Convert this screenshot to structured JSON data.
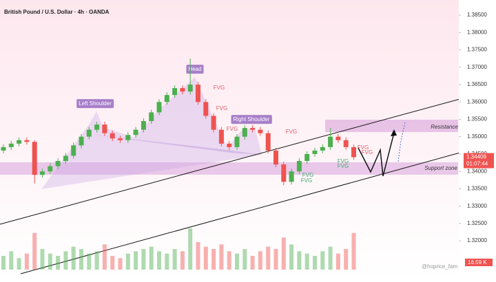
{
  "chart_data": {
    "type": "candlestick",
    "title": "British Pound / U.S. Dollar · 4h · OANDA",
    "ylim": [
      1.3117,
      1.3874
    ],
    "yticks": [
      {
        "value": 1.385,
        "label": "1.38500"
      },
      {
        "value": 1.38,
        "label": "1.38000"
      },
      {
        "value": 1.375,
        "label": "1.37500"
      },
      {
        "value": 1.37,
        "label": "1.37000"
      },
      {
        "value": 1.365,
        "label": "1.36500"
      },
      {
        "value": 1.36,
        "label": "1.36000"
      },
      {
        "value": 1.355,
        "label": "1.35500"
      },
      {
        "value": 1.35,
        "label": "1.35000"
      },
      {
        "value": 1.345,
        "label": "1.34500"
      },
      {
        "value": 1.34,
        "label": "1.34000"
      },
      {
        "value": 1.335,
        "label": "1.33500"
      },
      {
        "value": 1.33,
        "label": "1.33000"
      },
      {
        "value": 1.325,
        "label": "1.32500"
      },
      {
        "value": 1.32,
        "label": "1.32000"
      }
    ],
    "up_color": "#4caf50",
    "down_color": "#ef5350",
    "open": [
      1.346,
      1.347,
      1.348,
      1.349,
      1.3485,
      1.339,
      1.34,
      1.3415,
      1.343,
      1.3445,
      1.3475,
      1.35,
      1.352,
      1.3535,
      1.351,
      1.3495,
      1.349,
      1.3505,
      1.352,
      1.3545,
      1.357,
      1.36,
      1.362,
      1.364,
      1.363,
      1.365,
      1.36,
      1.356,
      1.352,
      1.348,
      1.347,
      1.35,
      1.3525,
      1.352,
      1.351,
      1.346,
      1.342,
      1.337,
      1.34,
      1.343,
      1.345,
      1.346,
      1.347,
      1.35,
      1.349,
      1.347
    ],
    "high": [
      1.3478,
      1.3488,
      1.3498,
      1.3498,
      1.349,
      1.3408,
      1.3423,
      1.3438,
      1.3453,
      1.3483,
      1.3508,
      1.3528,
      1.3543,
      1.3543,
      1.3518,
      1.3503,
      1.3513,
      1.3528,
      1.3553,
      1.3578,
      1.3608,
      1.3628,
      1.3648,
      1.3648,
      1.3725,
      1.3658,
      1.3608,
      1.3568,
      1.3528,
      1.3488,
      1.3508,
      1.3533,
      1.3533,
      1.3528,
      1.3518,
      1.3468,
      1.3428,
      1.3408,
      1.3438,
      1.3458,
      1.3468,
      1.3478,
      1.3525,
      1.3508,
      1.3498,
      1.3478
    ],
    "low": [
      1.3452,
      1.3462,
      1.3472,
      1.3477,
      1.3365,
      1.3382,
      1.3392,
      1.3407,
      1.3422,
      1.3437,
      1.3467,
      1.3492,
      1.3512,
      1.3502,
      1.3487,
      1.3482,
      1.3482,
      1.3497,
      1.3512,
      1.3537,
      1.3562,
      1.3592,
      1.3612,
      1.3622,
      1.3622,
      1.3592,
      1.3552,
      1.3512,
      1.3472,
      1.3462,
      1.3462,
      1.3492,
      1.3512,
      1.3502,
      1.3452,
      1.3412,
      1.336,
      1.3362,
      1.3392,
      1.3422,
      1.3442,
      1.3452,
      1.3462,
      1.3482,
      1.3462,
      1.3433
    ],
    "close": [
      1.347,
      1.348,
      1.349,
      1.3485,
      1.339,
      1.34,
      1.3415,
      1.343,
      1.3445,
      1.3475,
      1.35,
      1.352,
      1.3535,
      1.351,
      1.3495,
      1.349,
      1.3505,
      1.352,
      1.3545,
      1.357,
      1.36,
      1.362,
      1.364,
      1.363,
      1.365,
      1.36,
      1.356,
      1.352,
      1.348,
      1.347,
      1.35,
      1.3525,
      1.352,
      1.351,
      1.346,
      1.342,
      1.337,
      1.34,
      1.343,
      1.345,
      1.346,
      1.347,
      1.35,
      1.349,
      1.347,
      1.34409
    ],
    "volume": [
      6,
      8,
      5,
      7,
      16,
      9,
      7,
      6,
      8,
      10,
      9,
      7,
      8,
      11,
      6,
      5,
      7,
      8,
      9,
      10,
      8,
      7,
      9,
      8,
      18,
      12,
      10,
      9,
      11,
      8,
      7,
      9,
      6,
      8,
      10,
      9,
      14,
      11,
      8,
      7,
      6,
      8,
      10,
      7,
      9,
      16
    ],
    "last_price": {
      "value": 1.34409,
      "label": "1.34409"
    },
    "countdown": "01:07:44",
    "volume_label": "16.59 K",
    "annotations": {
      "head": "Head",
      "left_shoulder": "Left Shoulder",
      "right_shoulder": "Right Shoulder",
      "resistance": "Resistance",
      "support": "Support zone"
    },
    "fvg_labels": [
      "FVG",
      "FVG",
      "FVG",
      "FVG",
      "FVG",
      "FVG",
      "FVG",
      "FVG",
      "FVG",
      "FVG"
    ],
    "watermark": "@hoprice_fam"
  }
}
